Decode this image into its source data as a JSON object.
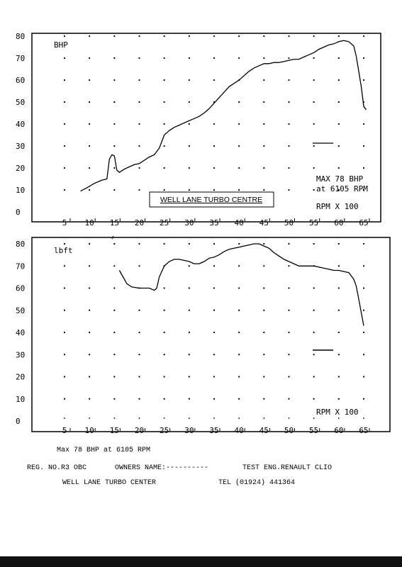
{
  "chart_data": [
    {
      "type": "line",
      "ylabel": "BHP",
      "xlabel": "RPM X 100",
      "xticks": [
        5,
        10,
        15,
        20,
        25,
        30,
        35,
        40,
        45,
        50,
        55,
        60,
        65
      ],
      "yticks": [
        0,
        10,
        20,
        30,
        40,
        50,
        60,
        70,
        80
      ],
      "xlim": [
        0,
        67
      ],
      "ylim": [
        0,
        80
      ],
      "grid": true,
      "annotations": [
        "MAX 78 BHP",
        "at 6105 RPM",
        "WELL LANE TURBO CENTRE"
      ],
      "series": [
        {
          "x": [
            8.2,
            9.5,
            11,
            12.5,
            13.5,
            14,
            14.5,
            15,
            15.5,
            16,
            17,
            18,
            19,
            20,
            21,
            22,
            23,
            24,
            25,
            26,
            27,
            28,
            29,
            30,
            31,
            32,
            33,
            34,
            35,
            36,
            37,
            38,
            39,
            40,
            41,
            42,
            43,
            44,
            45,
            46,
            47,
            48,
            49,
            50,
            51,
            52,
            53,
            54,
            55,
            56,
            57,
            58,
            59,
            60,
            61,
            62,
            63,
            63.5,
            64,
            64.5,
            65,
            65.5
          ],
          "values": [
            9.5,
            11,
            13,
            14.5,
            15,
            24,
            26,
            25.5,
            19,
            18,
            19.5,
            20.5,
            21.5,
            22,
            23.5,
            25,
            26,
            29,
            35,
            37,
            38.5,
            39.5,
            40.5,
            41.5,
            42.5,
            43.5,
            45,
            47,
            49.5,
            52,
            54.5,
            57,
            58.5,
            60,
            62,
            64,
            65.5,
            66.5,
            67.5,
            67.5,
            68,
            68,
            68.5,
            69,
            69.5,
            69.5,
            70.5,
            71.5,
            72.5,
            74,
            75,
            76,
            76.5,
            77.5,
            78,
            77.5,
            75.5,
            71,
            64,
            57,
            48,
            46.5
          ]
        }
      ]
    },
    {
      "type": "line",
      "ylabel": "lbft",
      "xlabel": "RPM X 100",
      "xticks": [
        5,
        10,
        15,
        20,
        25,
        30,
        35,
        40,
        45,
        50,
        55,
        60,
        65
      ],
      "yticks": [
        0,
        10,
        20,
        30,
        40,
        50,
        60,
        70,
        80
      ],
      "xlim": [
        0,
        67
      ],
      "ylim": [
        0,
        80
      ],
      "grid": true,
      "series": [
        {
          "x": [
            16,
            17,
            17.5,
            18.5,
            20,
            21,
            22,
            23,
            23.5,
            24,
            25,
            26,
            27,
            28,
            29,
            30,
            31,
            32,
            33,
            34,
            35,
            36,
            37,
            38,
            39,
            40,
            41,
            42,
            43,
            44,
            45,
            46,
            47,
            48,
            49,
            50,
            51,
            52,
            53,
            54,
            55,
            56,
            57,
            58,
            59,
            60,
            61,
            62,
            63,
            63.5,
            64,
            64.5,
            65
          ],
          "values": [
            68,
            64,
            62,
            60.5,
            60,
            60,
            60,
            59,
            60,
            65,
            70,
            72,
            73,
            73,
            72.5,
            72,
            71,
            71,
            72,
            73.5,
            74,
            75,
            76.5,
            77.5,
            78,
            78.5,
            79,
            79.5,
            80,
            80,
            79,
            78,
            76,
            74.5,
            73,
            72,
            71,
            70,
            70,
            70,
            70,
            69.5,
            69,
            68.5,
            68,
            68,
            67.5,
            67,
            64,
            61,
            55,
            49,
            43
          ]
        }
      ]
    }
  ],
  "top_chart": {
    "y_label": "BHP",
    "x_label": "RPM X 100",
    "max_line1": "MAX 78 BHP",
    "max_line2": "at 6105 RPM",
    "box_label": "WELL LANE TURBO CENTRE"
  },
  "bottom_chart": {
    "y_label": "lbft",
    "x_label": "RPM X 100"
  },
  "footer": {
    "max_line": "Max 78 BHP at 6105 RPM",
    "reg": "REG. NO.R3 OBC",
    "owner": "OWNERS NAME:----------",
    "test": "TEST ENG.RENAULT CLIO",
    "center": "WELL LANE TURBO CENTER",
    "tel": "TEL (01924) 441364"
  }
}
